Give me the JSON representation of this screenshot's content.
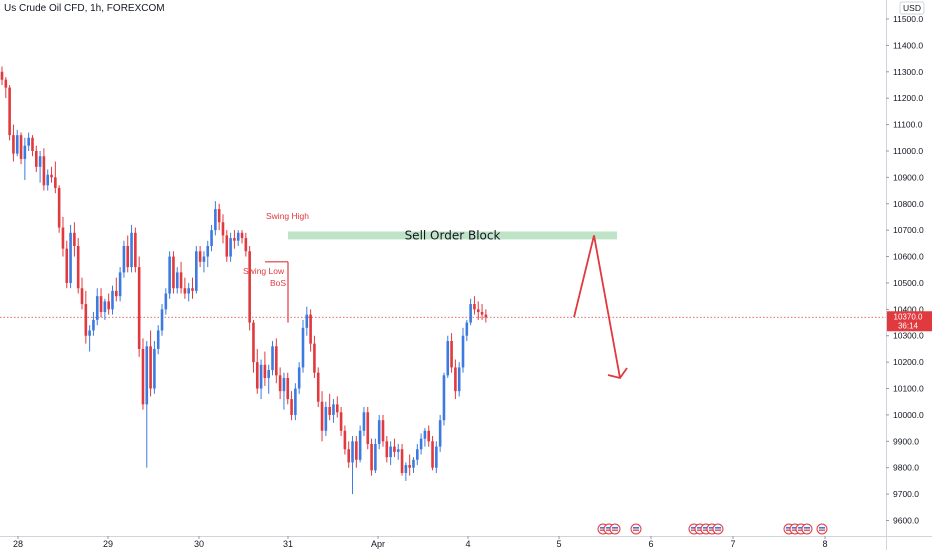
{
  "header": {
    "symbol_line": "Us Crude Oil CFD, 1h, FOREXCOM"
  },
  "currency_badge": "USD",
  "price_badge": {
    "price": "10370.0",
    "countdown": "36:14"
  },
  "colors": {
    "up": "#3d7ae0",
    "down": "#e0393e",
    "order_block": "#bfe3c6",
    "annotation": "#e0393e",
    "price_line": "#e0393e"
  },
  "annotations": {
    "swing_high": "Swing High",
    "swing_low": "Swing Low",
    "bos": "BoS",
    "order_block": "Sell Order Block"
  },
  "chart_data": {
    "type": "candlestick",
    "title": "Us Crude Oil CFD, 1h, FOREXCOM",
    "y_ticks": [
      "9600.0",
      "9700.0",
      "9800.0",
      "9900.0",
      "10000.0",
      "10100.0",
      "10200.0",
      "10300.0",
      "10400.0",
      "10500.0",
      "10600.0",
      "10700.0",
      "10800.0",
      "10900.0",
      "11000.0",
      "11100.0",
      "11200.0",
      "11300.0",
      "11400.0",
      "11500.0"
    ],
    "x_ticks": [
      "28",
      "29",
      "30",
      "31",
      "Apr",
      "4",
      "5",
      "6",
      "7",
      "8"
    ],
    "ylim": [
      9530,
      11540
    ],
    "grid": false,
    "current_price": 10370.0,
    "sell_order_block": {
      "from": 10665,
      "to": 10695
    },
    "swing_low_level": 10580,
    "projection": [
      10370,
      10680,
      10140
    ],
    "event_markers_count": 14,
    "candles": [
      [
        11300,
        11320,
        11250,
        11270
      ],
      [
        11270,
        11280,
        11200,
        11240
      ],
      [
        11240,
        11250,
        11040,
        11060
      ],
      [
        11060,
        11100,
        10960,
        10990
      ],
      [
        10990,
        11080,
        10980,
        11060
      ],
      [
        11060,
        11070,
        10950,
        10970
      ],
      [
        10970,
        11050,
        10890,
        11020
      ],
      [
        11020,
        11070,
        11000,
        11050
      ],
      [
        11050,
        11060,
        10980,
        11000
      ],
      [
        11000,
        11020,
        10920,
        10940
      ],
      [
        10940,
        11000,
        10880,
        10980
      ],
      [
        10980,
        11010,
        10850,
        10870
      ],
      [
        10870,
        10930,
        10850,
        10910
      ],
      [
        10910,
        10940,
        10880,
        10900
      ],
      [
        10900,
        10960,
        10840,
        10860
      ],
      [
        10860,
        10870,
        10690,
        10710
      ],
      [
        10710,
        10750,
        10600,
        10630
      ],
      [
        10630,
        10660,
        10480,
        10500
      ],
      [
        10500,
        10720,
        10480,
        10690
      ],
      [
        10690,
        10730,
        10600,
        10640
      ],
      [
        10640,
        10670,
        10460,
        10480
      ],
      [
        10480,
        10520,
        10400,
        10420
      ],
      [
        10420,
        10470,
        10270,
        10300
      ],
      [
        10300,
        10340,
        10240,
        10320
      ],
      [
        10320,
        10390,
        10300,
        10360
      ],
      [
        10360,
        10480,
        10340,
        10450
      ],
      [
        10450,
        10480,
        10370,
        10390
      ],
      [
        10390,
        10440,
        10360,
        10430
      ],
      [
        10430,
        10460,
        10380,
        10400
      ],
      [
        10400,
        10490,
        10380,
        10470
      ],
      [
        10470,
        10520,
        10430,
        10450
      ],
      [
        10450,
        10560,
        10430,
        10540
      ],
      [
        10540,
        10660,
        10520,
        10640
      ],
      [
        10640,
        10680,
        10540,
        10560
      ],
      [
        10560,
        10720,
        10540,
        10690
      ],
      [
        10690,
        10710,
        10540,
        10560
      ],
      [
        10560,
        10600,
        10220,
        10250
      ],
      [
        10250,
        10290,
        10020,
        10040
      ],
      [
        10040,
        10280,
        9800,
        10260
      ],
      [
        10260,
        10320,
        10070,
        10100
      ],
      [
        10100,
        10280,
        10080,
        10250
      ],
      [
        10250,
        10340,
        10230,
        10320
      ],
      [
        10320,
        10420,
        10300,
        10400
      ],
      [
        10400,
        10480,
        10380,
        10460
      ],
      [
        10460,
        10620,
        10440,
        10600
      ],
      [
        10600,
        10620,
        10460,
        10480
      ],
      [
        10480,
        10560,
        10460,
        10540
      ],
      [
        10540,
        10580,
        10460,
        10480
      ],
      [
        10480,
        10520,
        10440,
        10460
      ],
      [
        10460,
        10500,
        10430,
        10480
      ],
      [
        10480,
        10520,
        10440,
        10470
      ],
      [
        10470,
        10640,
        10460,
        10620
      ],
      [
        10620,
        10640,
        10560,
        10580
      ],
      [
        10580,
        10620,
        10540,
        10600
      ],
      [
        10600,
        10660,
        10560,
        10640
      ],
      [
        10640,
        10720,
        10620,
        10700
      ],
      [
        10700,
        10810,
        10680,
        10780
      ],
      [
        10780,
        10800,
        10700,
        10730
      ],
      [
        10730,
        10760,
        10650,
        10680
      ],
      [
        10680,
        10700,
        10580,
        10600
      ],
      [
        10600,
        10690,
        10580,
        10670
      ],
      [
        10670,
        10700,
        10630,
        10660
      ],
      [
        10660,
        10700,
        10640,
        10690
      ],
      [
        10690,
        10700,
        10650,
        10670
      ],
      [
        10670,
        10690,
        10600,
        10620
      ],
      [
        10620,
        10640,
        10320,
        10350
      ],
      [
        10350,
        10360,
        10160,
        10200
      ],
      [
        10200,
        10250,
        10080,
        10100
      ],
      [
        10100,
        10210,
        10060,
        10190
      ],
      [
        10190,
        10240,
        10110,
        10140
      ],
      [
        10140,
        10190,
        10080,
        10170
      ],
      [
        10170,
        10280,
        10150,
        10260
      ],
      [
        10260,
        10290,
        10120,
        10150
      ],
      [
        10150,
        10180,
        10060,
        10090
      ],
      [
        10090,
        10160,
        10020,
        10140
      ],
      [
        10140,
        10160,
        10040,
        10060
      ],
      [
        10060,
        10090,
        9980,
        10000
      ],
      [
        10000,
        10120,
        9980,
        10100
      ],
      [
        10100,
        10200,
        10080,
        10180
      ],
      [
        10180,
        10360,
        10160,
        10330
      ],
      [
        10330,
        10410,
        10300,
        10380
      ],
      [
        10380,
        10400,
        10240,
        10270
      ],
      [
        10270,
        10300,
        10140,
        10160
      ],
      [
        10160,
        10180,
        10030,
        10050
      ],
      [
        10050,
        10090,
        9900,
        9940
      ],
      [
        9940,
        10050,
        9920,
        10030
      ],
      [
        10030,
        10080,
        9980,
        10000
      ],
      [
        10000,
        10060,
        9970,
        10040
      ],
      [
        10040,
        10070,
        9990,
        10010
      ],
      [
        10010,
        10030,
        9920,
        9940
      ],
      [
        9940,
        9960,
        9850,
        9870
      ],
      [
        9870,
        9900,
        9800,
        9820
      ],
      [
        9820,
        9920,
        9700,
        9900
      ],
      [
        9900,
        9920,
        9800,
        9830
      ],
      [
        9830,
        9960,
        9820,
        9940
      ],
      [
        9940,
        10030,
        9920,
        10010
      ],
      [
        10010,
        10030,
        9870,
        9890
      ],
      [
        9890,
        9910,
        9770,
        9790
      ],
      [
        9790,
        9910,
        9780,
        9890
      ],
      [
        9890,
        10000,
        9870,
        9980
      ],
      [
        9980,
        10000,
        9880,
        9900
      ],
      [
        9900,
        9920,
        9820,
        9840
      ],
      [
        9840,
        9900,
        9810,
        9880
      ],
      [
        9880,
        9910,
        9840,
        9860
      ],
      [
        9860,
        9890,
        9830,
        9870
      ],
      [
        9870,
        9890,
        9770,
        9780
      ],
      [
        9780,
        9820,
        9750,
        9810
      ],
      [
        9810,
        9850,
        9770,
        9800
      ],
      [
        9800,
        9840,
        9780,
        9830
      ],
      [
        9830,
        9890,
        9810,
        9870
      ],
      [
        9870,
        9930,
        9850,
        9910
      ],
      [
        9910,
        9950,
        9880,
        9940
      ],
      [
        9940,
        9960,
        9880,
        9900
      ],
      [
        9900,
        9920,
        9790,
        9800
      ],
      [
        9800,
        9900,
        9780,
        9880
      ],
      [
        9880,
        10000,
        9860,
        9980
      ],
      [
        9980,
        10160,
        9960,
        10150
      ],
      [
        10150,
        10300,
        10140,
        10280
      ],
      [
        10280,
        10310,
        10160,
        10180
      ],
      [
        10180,
        10210,
        10060,
        10090
      ],
      [
        10090,
        10200,
        10070,
        10180
      ],
      [
        10180,
        10330,
        10160,
        10300
      ],
      [
        10300,
        10360,
        10280,
        10350
      ],
      [
        10350,
        10440,
        10340,
        10420
      ],
      [
        10420,
        10450,
        10380,
        10400
      ],
      [
        10400,
        10430,
        10360,
        10390
      ],
      [
        10390,
        10420,
        10360,
        10380
      ],
      [
        10380,
        10400,
        10350,
        10370
      ]
    ]
  }
}
